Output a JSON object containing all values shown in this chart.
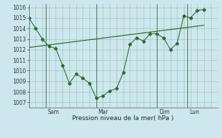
{
  "title": "",
  "xlabel": "Pression niveau de la mer( hPa )",
  "bg_color": "#cce8ee",
  "grid_color": "#99bbaa",
  "line_color": "#2d6b2d",
  "ylim": [
    1006.5,
    1016.3
  ],
  "yticks": [
    1007,
    1008,
    1009,
    1010,
    1011,
    1012,
    1013,
    1014,
    1015,
    1016
  ],
  "xlim": [
    0,
    28
  ],
  "x_values": [
    0,
    1,
    2,
    3,
    4,
    5,
    6,
    7,
    8,
    9,
    10,
    11,
    12,
    13,
    14,
    15,
    16,
    17,
    18,
    19,
    20,
    21,
    22,
    23,
    24,
    25,
    26
  ],
  "y_values": [
    1015.0,
    1014.0,
    1013.0,
    1012.3,
    1012.1,
    1010.5,
    1008.8,
    1009.7,
    1009.3,
    1008.8,
    1007.4,
    1007.6,
    1008.1,
    1008.3,
    1009.8,
    1012.5,
    1013.1,
    1012.8,
    1013.5,
    1013.5,
    1013.1,
    1012.0,
    1012.6,
    1015.2,
    1015.0,
    1015.7,
    1015.8
  ],
  "trend_x": [
    0,
    26
  ],
  "trend_y": [
    1012.2,
    1014.3
  ],
  "vlines": [
    {
      "x": 2.5,
      "label": "Sam"
    },
    {
      "x": 10.0,
      "label": "Mar"
    },
    {
      "x": 19.0,
      "label": "Dim"
    },
    {
      "x": 23.5,
      "label": "Lun"
    }
  ]
}
